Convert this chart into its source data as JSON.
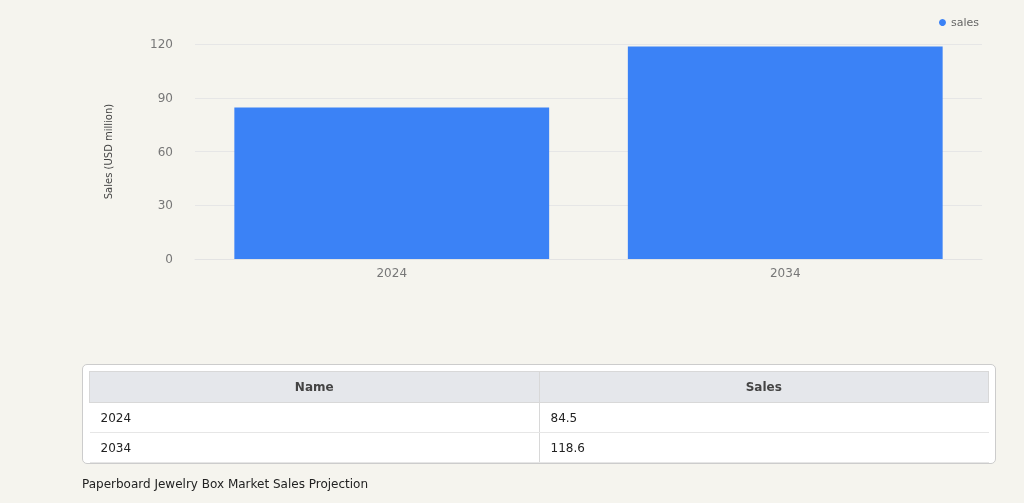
{
  "chart_data": {
    "type": "bar",
    "title": "Paperboard Jewelry Box Market Sales Projection",
    "ylabel": "Sales (USD million)",
    "categories": [
      "2024",
      "2034"
    ],
    "series": [
      {
        "name": "sales",
        "color": "#3b82f6",
        "values": [
          84.5,
          118.6
        ]
      }
    ],
    "ylim": [
      0,
      120
    ],
    "yticks": [
      0,
      30,
      60,
      90,
      120
    ],
    "grid": "y",
    "legend": "top right",
    "annotations": [
      "Name",
      "Sales",
      "2024",
      "84.5",
      "2034",
      "118.6"
    ]
  }
}
